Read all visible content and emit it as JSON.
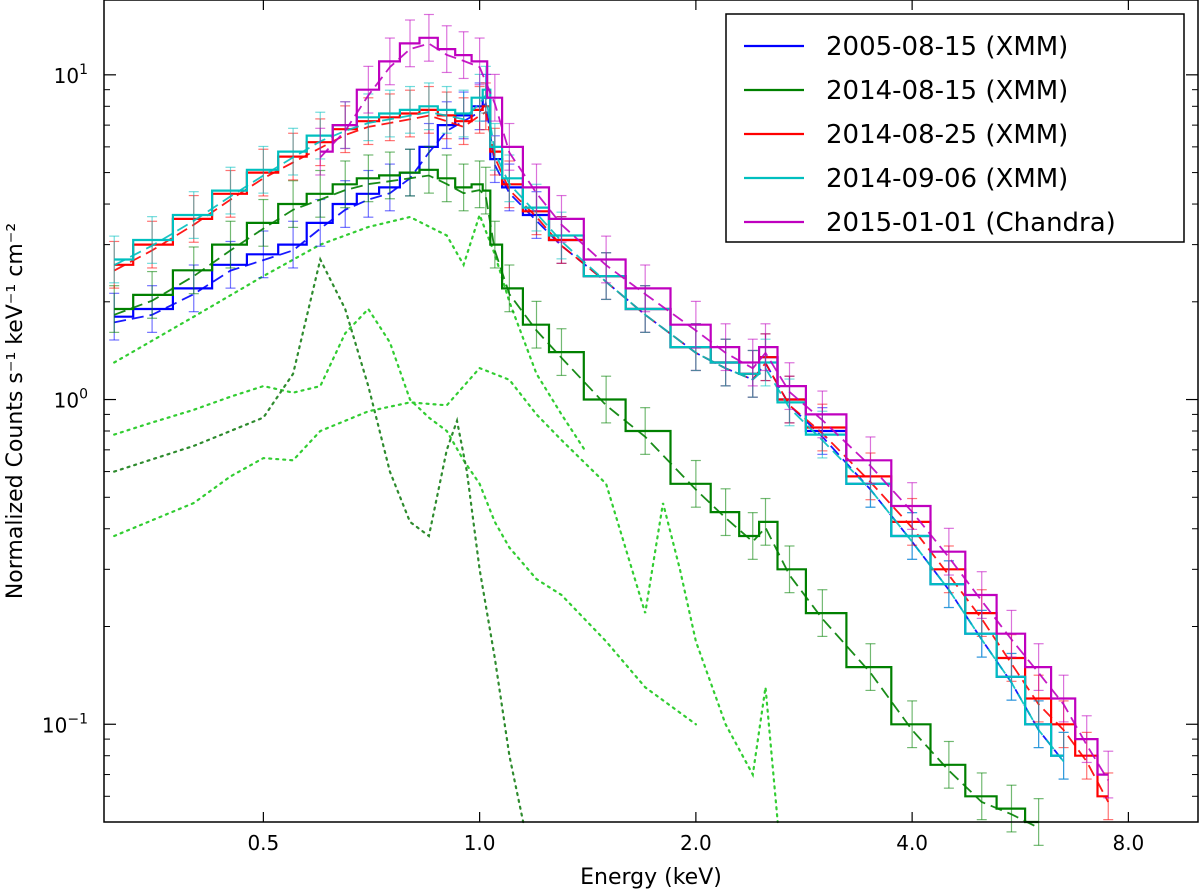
{
  "chart_data": {
    "type": "line",
    "xlabel": "Energy (keV)",
    "ylabel": "Normalized Counts s⁻¹ keV⁻¹ cm⁻²",
    "x_scale": "log2",
    "y_scale": "log10",
    "xlim": [
      0.3,
      10.0
    ],
    "ylim": [
      0.05,
      17.0
    ],
    "x_ticks": [
      {
        "value": 0.5,
        "label": "0.5"
      },
      {
        "value": 1.0,
        "label": "1.0"
      },
      {
        "value": 2.0,
        "label": "2.0"
      },
      {
        "value": 4.0,
        "label": "4.0"
      },
      {
        "value": 8.0,
        "label": "8.0"
      }
    ],
    "y_ticks": [
      {
        "value": 0.1,
        "base": "10",
        "exp": "−1"
      },
      {
        "value": 1.0,
        "base": "10",
        "exp": "0"
      },
      {
        "value": 10.0,
        "base": "10",
        "exp": "1"
      }
    ],
    "legend_position": "top-right",
    "grid": false,
    "series": [
      {
        "name": "2005-08-15 (XMM)",
        "color": "#0000ff",
        "x": [
          0.31,
          0.35,
          0.4,
          0.45,
          0.5,
          0.55,
          0.6,
          0.65,
          0.7,
          0.75,
          0.8,
          0.85,
          0.9,
          0.95,
          1.0,
          1.02,
          1.05,
          1.1,
          1.2,
          1.3,
          1.5,
          1.7,
          2.0,
          2.2,
          2.4,
          2.5,
          2.7,
          3.0,
          3.5,
          4.0,
          4.5,
          5.0,
          5.5,
          6.0,
          6.5
        ],
        "y": [
          1.8,
          1.9,
          2.2,
          2.6,
          2.8,
          3.0,
          3.5,
          4.0,
          4.3,
          4.5,
          5.0,
          6.0,
          7.0,
          7.5,
          8.0,
          8.5,
          5.5,
          4.5,
          3.7,
          3.1,
          2.4,
          1.9,
          1.45,
          1.3,
          1.2,
          1.35,
          1.0,
          0.8,
          0.55,
          0.38,
          0.27,
          0.19,
          0.14,
          0.1,
          0.08
        ]
      },
      {
        "name": "2014-08-15 (XMM)",
        "color": "#008000",
        "x": [
          0.31,
          0.35,
          0.4,
          0.45,
          0.5,
          0.55,
          0.6,
          0.65,
          0.7,
          0.75,
          0.8,
          0.85,
          0.9,
          0.95,
          1.0,
          1.02,
          1.05,
          1.1,
          1.2,
          1.3,
          1.5,
          1.7,
          2.0,
          2.2,
          2.4,
          2.5,
          2.7,
          3.0,
          3.5,
          4.0,
          4.5,
          5.0,
          5.5,
          6.0
        ],
        "y": [
          1.9,
          2.1,
          2.5,
          3.0,
          3.5,
          4.0,
          4.3,
          4.6,
          4.8,
          4.9,
          5.0,
          5.1,
          4.8,
          4.5,
          4.6,
          4.4,
          3.0,
          2.2,
          1.7,
          1.4,
          1.0,
          0.8,
          0.55,
          0.45,
          0.38,
          0.42,
          0.3,
          0.22,
          0.15,
          0.1,
          0.075,
          0.06,
          0.055,
          0.05
        ]
      },
      {
        "name": "2014-08-25 (XMM)",
        "color": "#ff0000",
        "x": [
          0.31,
          0.35,
          0.4,
          0.45,
          0.5,
          0.55,
          0.6,
          0.65,
          0.7,
          0.75,
          0.8,
          0.85,
          0.9,
          0.95,
          1.0,
          1.02,
          1.05,
          1.1,
          1.2,
          1.3,
          1.5,
          1.7,
          2.0,
          2.2,
          2.4,
          2.5,
          2.7,
          3.0,
          3.5,
          4.0,
          4.5,
          5.0,
          5.5,
          6.0,
          6.5,
          7.0,
          7.5
        ],
        "y": [
          2.6,
          3.0,
          3.6,
          4.3,
          5.0,
          5.6,
          6.2,
          6.8,
          7.2,
          7.4,
          7.6,
          7.8,
          7.5,
          7.2,
          7.8,
          8.0,
          5.8,
          4.6,
          3.8,
          3.1,
          2.4,
          1.9,
          1.45,
          1.3,
          1.2,
          1.35,
          1.0,
          0.82,
          0.58,
          0.42,
          0.3,
          0.22,
          0.16,
          0.12,
          0.1,
          0.08,
          0.06
        ]
      },
      {
        "name": "2014-09-06 (XMM)",
        "color": "#00bfbf",
        "x": [
          0.31,
          0.35,
          0.4,
          0.45,
          0.5,
          0.55,
          0.6,
          0.65,
          0.7,
          0.75,
          0.8,
          0.85,
          0.9,
          0.95,
          1.0,
          1.02,
          1.05,
          1.1,
          1.2,
          1.3,
          1.5,
          1.7,
          2.0,
          2.2,
          2.4,
          2.5,
          2.7,
          3.0,
          3.5,
          4.0,
          4.5,
          5.0,
          5.5,
          6.0,
          6.5
        ],
        "y": [
          2.7,
          3.1,
          3.7,
          4.4,
          5.1,
          5.8,
          6.5,
          7.0,
          7.4,
          7.6,
          7.8,
          8.0,
          7.8,
          7.6,
          8.5,
          9.0,
          6.0,
          4.8,
          3.9,
          3.2,
          2.4,
          1.9,
          1.45,
          1.3,
          1.2,
          1.3,
          0.98,
          0.78,
          0.55,
          0.38,
          0.27,
          0.19,
          0.14,
          0.1,
          0.08
        ]
      },
      {
        "name": "2015-01-01 (Chandra)",
        "color": "#bf00bf",
        "x": [
          0.6,
          0.65,
          0.7,
          0.75,
          0.8,
          0.85,
          0.9,
          0.95,
          1.0,
          1.05,
          1.1,
          1.2,
          1.3,
          1.5,
          1.7,
          2.0,
          2.2,
          2.4,
          2.5,
          2.7,
          3.0,
          3.5,
          4.0,
          4.5,
          5.0,
          5.5,
          6.0,
          6.5,
          7.0,
          7.5
        ],
        "y": [
          5.8,
          7.0,
          9.0,
          11.0,
          12.5,
          13.0,
          12.0,
          11.5,
          11.0,
          8.5,
          6.0,
          4.5,
          3.6,
          2.7,
          2.2,
          1.7,
          1.45,
          1.3,
          1.45,
          1.1,
          0.9,
          0.65,
          0.47,
          0.34,
          0.25,
          0.19,
          0.15,
          0.12,
          0.09,
          0.07
        ]
      }
    ],
    "model_components": [
      {
        "color": "#32cd32",
        "style": "dotted",
        "x": [
          0.31,
          0.35,
          0.4,
          0.45,
          0.5,
          0.55,
          0.6,
          0.65,
          0.7,
          0.75,
          0.8,
          0.85,
          0.9,
          0.95,
          1.0,
          1.05,
          1.1,
          1.2,
          1.3,
          1.5,
          1.7,
          2.0
        ],
        "y": [
          0.78,
          0.85,
          0.93,
          1.02,
          1.1,
          1.05,
          1.1,
          1.6,
          1.9,
          1.5,
          1.0,
          0.88,
          0.8,
          0.65,
          0.55,
          0.42,
          0.35,
          0.28,
          0.25,
          0.18,
          0.13,
          0.1
        ]
      },
      {
        "color": "#2e8b2e",
        "style": "dotted",
        "x": [
          0.31,
          0.4,
          0.5,
          0.55,
          0.6,
          0.65,
          0.7,
          0.75,
          0.8,
          0.85,
          0.9,
          0.93,
          0.96,
          1.0,
          1.05,
          1.1,
          1.15
        ],
        "y": [
          0.6,
          0.72,
          0.88,
          1.2,
          2.7,
          1.9,
          1.1,
          0.6,
          0.42,
          0.38,
          0.7,
          0.86,
          0.6,
          0.3,
          0.16,
          0.08,
          0.05
        ]
      },
      {
        "color": "#32cd32",
        "style": "dotted",
        "x": [
          0.31,
          0.4,
          0.45,
          0.5,
          0.55,
          0.6,
          0.7,
          0.8,
          0.9,
          1.0,
          1.1,
          1.2,
          1.3,
          1.5,
          1.7,
          1.8,
          1.9,
          2.0,
          2.2,
          2.4,
          2.5,
          2.6
        ],
        "y": [
          0.38,
          0.48,
          0.58,
          0.66,
          0.65,
          0.8,
          0.92,
          0.98,
          0.96,
          1.25,
          1.15,
          0.9,
          0.75,
          0.55,
          0.22,
          0.48,
          0.3,
          0.18,
          0.1,
          0.07,
          0.13,
          0.05
        ]
      },
      {
        "color": "#32cd32",
        "style": "dotted",
        "x": [
          0.31,
          0.4,
          0.5,
          0.6,
          0.7,
          0.8,
          0.9,
          0.95,
          1.0,
          1.05,
          1.1,
          1.2,
          1.3,
          1.4
        ],
        "y": [
          1.3,
          1.8,
          2.4,
          3.0,
          3.4,
          3.65,
          3.2,
          2.6,
          3.7,
          2.8,
          2.0,
          1.2,
          0.9,
          0.7
        ]
      }
    ]
  }
}
